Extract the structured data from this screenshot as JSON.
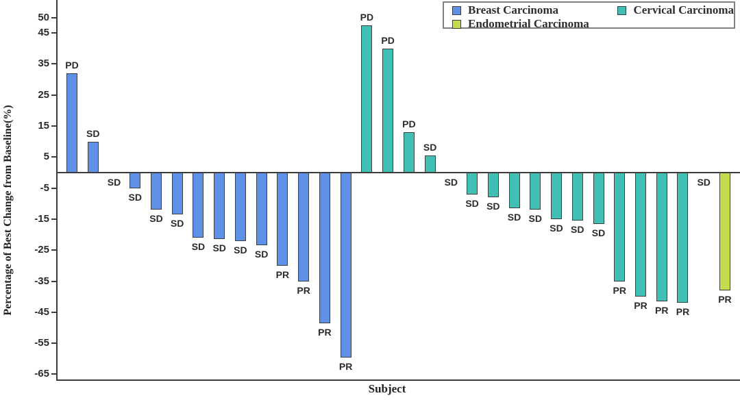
{
  "chart_data": {
    "type": "bar",
    "subtype": "waterfall-best-response",
    "title": "",
    "xlabel": "Subject",
    "ylabel": "Percentage of Best Change from Baseline(%)",
    "yticks": [
      50,
      45,
      35,
      25,
      15,
      5,
      -5,
      -15,
      -25,
      -35,
      -45,
      -55,
      -65
    ],
    "ylim": [
      -67,
      56
    ],
    "grid": false,
    "legend_position": "top-right",
    "bar_outline_color": "#3d3d3d",
    "axis_color": "#3b3b3b",
    "series": [
      {
        "name": "Breast Carcinoma",
        "color": "#5f90e8",
        "values": [
          32,
          10,
          0,
          -5,
          -12,
          -13.5,
          -21,
          -21.5,
          -22,
          -23.5,
          -30,
          -35,
          -48.5,
          -59.5
        ],
        "labels": [
          "PD",
          "SD",
          "SD",
          "SD",
          "SD",
          "SD",
          "SD",
          "SD",
          "SD",
          "SD",
          "PR",
          "PR",
          "PR",
          "PR"
        ]
      },
      {
        "name": "Cervical Carcinoma",
        "color": "#41bfb4",
        "values": [
          47.5,
          40,
          13,
          5.5,
          0,
          -7,
          -8,
          -11.5,
          -12,
          -15,
          -15.5,
          -16.5,
          -35,
          -40,
          -41.5,
          -42
        ],
        "labels": [
          "PD",
          "PD",
          "PD",
          "SD",
          "SD",
          "SD",
          "SD",
          "SD",
          "SD",
          "SD",
          "SD",
          "SD",
          "PR",
          "PR",
          "PR",
          "PR"
        ]
      },
      {
        "name": "Endometrial Carcinoma",
        "color": "#c3dc4e",
        "values": [
          0,
          -38
        ],
        "labels": [
          "SD",
          "PR"
        ]
      }
    ]
  },
  "legend": {
    "items": [
      {
        "label": "Breast Carcinoma",
        "color": "#5f90e8"
      },
      {
        "label": "Cervical Carcinoma",
        "color": "#41bfb4"
      },
      {
        "label": "Endometrial Carcinoma",
        "color": "#c3dc4e"
      }
    ]
  }
}
